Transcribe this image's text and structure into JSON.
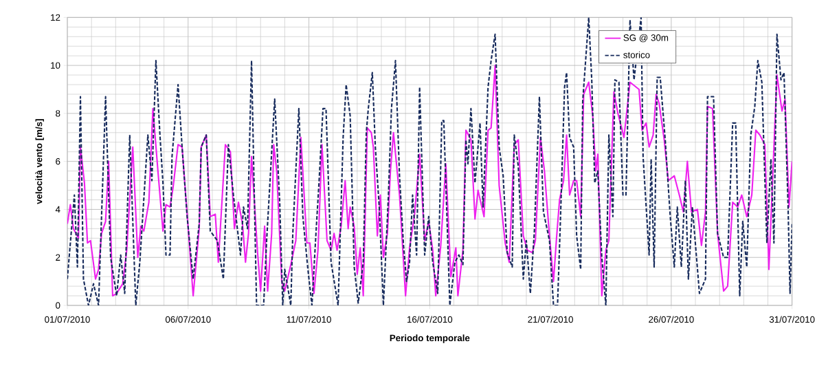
{
  "chart_data": {
    "type": "line",
    "xlabel": "Periodo temporale",
    "ylabel": "velocità vento [m/s]",
    "xlim": [
      "2010-07-01",
      "2010-07-31"
    ],
    "xticks": [
      {
        "value": "2010-07-01",
        "label": "01/07/2010"
      },
      {
        "value": "2010-07-06",
        "label": "06/07/2010"
      },
      {
        "value": "2010-07-11",
        "label": "11/07/2010"
      },
      {
        "value": "2010-07-16",
        "label": "16/07/2010"
      },
      {
        "value": "2010-07-21",
        "label": "21/07/2010"
      },
      {
        "value": "2010-07-26",
        "label": "26/07/2010"
      },
      {
        "value": "2010-07-31",
        "label": "31/07/2010"
      }
    ],
    "ylim": [
      0,
      12
    ],
    "yticks": [
      0,
      2,
      4,
      6,
      8,
      10,
      12
    ],
    "grid": true,
    "legend": "top right",
    "series": [
      {
        "name": "SG @ 30m",
        "color": "#ee22ee",
        "line_style": "solid",
        "x": [
          "2010-07-01T00:00",
          "2010-07-01T03:00",
          "2010-07-01T06:00",
          "2010-07-01T11:00",
          "2010-07-01T13:00",
          "2010-07-01T17:00",
          "2010-07-01T20:00",
          "2010-07-01T23:00",
          "2010-07-02T04:00",
          "2010-07-02T07:00",
          "2010-07-02T10:00",
          "2010-07-02T14:00",
          "2010-07-02T17:00",
          "2010-07-02T21:00",
          "2010-07-03T01:00",
          "2010-07-03T07:00",
          "2010-07-03T11:00",
          "2010-07-03T17:00",
          "2010-07-03T22:00",
          "2010-07-04T01:00",
          "2010-07-04T04:00",
          "2010-07-04T09:00",
          "2010-07-04T13:00",
          "2010-07-04T18:00",
          "2010-07-04T23:00",
          "2010-07-05T02:00",
          "2010-07-05T06:00",
          "2010-07-05T09:00",
          "2010-07-05T14:00",
          "2010-07-05T18:00",
          "2010-07-06T01:00",
          "2010-07-06T05:00",
          "2010-07-06T11:00",
          "2010-07-06T13:00",
          "2010-07-06T18:00",
          "2010-07-06T22:00",
          "2010-07-07T03:00",
          "2010-07-07T06:00",
          "2010-07-07T13:00",
          "2010-07-07T18:00",
          "2010-07-07T22:00",
          "2010-07-08T02:00",
          "2010-07-08T06:00",
          "2010-07-08T09:00",
          "2010-07-08T12:00",
          "2010-07-08T15:00",
          "2010-07-08T21:00",
          "2010-07-09T00:00",
          "2010-07-09T04:00",
          "2010-07-09T07:00",
          "2010-07-09T11:00",
          "2010-07-09T13:00",
          "2010-07-09T16:00",
          "2010-07-09T21:00",
          "2010-07-10T00:00",
          "2010-07-10T06:00",
          "2010-07-10T11:00",
          "2010-07-10T16:00",
          "2010-07-10T22:00",
          "2010-07-11T01:00",
          "2010-07-11T05:00",
          "2010-07-11T09:00",
          "2010-07-11T13:00",
          "2010-07-11T18:00",
          "2010-07-11T22:00",
          "2010-07-12T01:00",
          "2010-07-12T04:00",
          "2010-07-12T08:00",
          "2010-07-12T12:00",
          "2010-07-12T15:00",
          "2010-07-12T17:00",
          "2010-07-12T21:00",
          "2010-07-13T00:00",
          "2010-07-13T03:00",
          "2010-07-13T06:00",
          "2010-07-13T10:00",
          "2010-07-13T14:00",
          "2010-07-13T16:00",
          "2010-07-13T20:00",
          "2010-07-13T23:00",
          "2010-07-14T02:00",
          "2010-07-14T06:00",
          "2010-07-14T09:00",
          "2010-07-14T12:00",
          "2010-07-14T18:00",
          "2010-07-15T00:00",
          "2010-07-15T04:00",
          "2010-07-15T09:00",
          "2010-07-15T14:00",
          "2010-07-15T19:00",
          "2010-07-15T23:00",
          "2010-07-16T03:00",
          "2010-07-16T06:00",
          "2010-07-16T11:00",
          "2010-07-16T16:00",
          "2010-07-16T21:00",
          "2010-07-17T02:00",
          "2010-07-17T04:00",
          "2010-07-17T09:00",
          "2010-07-17T12:00",
          "2010-07-17T17:00",
          "2010-07-17T21:00",
          "2010-07-18T00:00",
          "2010-07-18T06:00",
          "2010-07-18T10:00",
          "2010-07-18T13:00",
          "2010-07-18T17:00",
          "2010-07-18T21:00",
          "2010-07-19T03:00",
          "2010-07-19T07:00",
          "2010-07-19T12:00",
          "2010-07-19T16:00",
          "2010-07-19T21:00",
          "2010-07-20T01:00",
          "2010-07-20T06:00",
          "2010-07-20T09:00",
          "2010-07-20T14:00",
          "2010-07-20T18:00",
          "2010-07-20T23:00",
          "2010-07-21T03:00",
          "2010-07-21T06:00",
          "2010-07-21T09:00",
          "2010-07-21T13:00",
          "2010-07-21T16:00",
          "2010-07-21T19:00",
          "2010-07-21T23:00",
          "2010-07-22T02:00",
          "2010-07-22T06:00",
          "2010-07-22T09:00",
          "2010-07-22T14:00",
          "2010-07-22T18:00",
          "2010-07-22T21:00",
          "2010-07-22T23:00",
          "2010-07-23T03:00",
          "2010-07-23T07:00",
          "2010-07-23T10:00",
          "2010-07-23T15:00",
          "2010-07-23T19:00",
          "2010-07-24T01:00",
          "2010-07-24T07:00",
          "2010-07-24T13:00",
          "2010-07-24T16:00",
          "2010-07-24T19:00",
          "2010-07-24T23:00",
          "2010-07-25T02:00",
          "2010-07-25T06:00",
          "2010-07-25T09:00",
          "2010-07-25T12:00",
          "2010-07-25T17:00",
          "2010-07-25T21:00",
          "2010-07-26T03:00",
          "2010-07-26T08:00",
          "2010-07-26T12:00",
          "2010-07-26T16:00",
          "2010-07-26T20:00",
          "2010-07-27T02:00",
          "2010-07-27T06:00",
          "2010-07-27T10:00",
          "2010-07-27T12:00",
          "2010-07-27T17:00",
          "2010-07-27T22:00",
          "2010-07-28T04:00",
          "2010-07-28T08:00",
          "2010-07-28T13:00",
          "2010-07-28T18:00",
          "2010-07-28T22:00",
          "2010-07-29T03:00",
          "2010-07-29T08:00",
          "2010-07-29T12:00",
          "2010-07-29T16:00",
          "2010-07-29T21:00",
          "2010-07-30T01:00",
          "2010-07-30T06:00",
          "2010-07-30T09:00",
          "2010-07-30T14:00",
          "2010-07-30T17:00",
          "2010-07-30T21:00",
          "2010-07-31T00:00"
        ],
        "values": [
          3.4,
          4.2,
          3.2,
          2.8,
          6.6,
          5.1,
          2.6,
          2.7,
          1.1,
          1.5,
          3.0,
          3.5,
          6.0,
          0.4,
          0.5,
          0.9,
          2.3,
          6.6,
          2.0,
          3.3,
          3.1,
          4.3,
          8.2,
          5.6,
          3.1,
          4.2,
          4.1,
          4.9,
          6.7,
          6.6,
          2.7,
          0.4,
          3.2,
          6.6,
          7.1,
          3.7,
          3.8,
          1.8,
          6.7,
          6.4,
          3.2,
          4.3,
          3.4,
          1.8,
          3.0,
          6.2,
          2.2,
          0.6,
          3.3,
          0.6,
          3.0,
          6.7,
          5.6,
          1.0,
          0.6,
          1.7,
          2.7,
          7.0,
          2.6,
          2.6,
          0.5,
          2.3,
          6.7,
          2.7,
          2.3,
          3.0,
          2.3,
          3.3,
          5.2,
          3.2,
          4.1,
          3.3,
          1.3,
          2.4,
          0.4,
          7.4,
          7.2,
          6.6,
          2.9,
          4.6,
          2.0,
          3.0,
          5.6,
          7.2,
          4.6,
          0.4,
          2.4,
          3.8,
          6.3,
          2.7,
          3.5,
          2.3,
          0.4,
          2.5,
          5.9,
          1.2,
          2.4,
          0.4,
          2.3,
          7.3,
          6.9,
          3.6,
          4.8,
          3.7,
          7.3,
          7.4,
          10.0,
          5.0,
          2.6,
          1.8,
          6.7,
          6.9,
          2.9,
          2.3,
          2.2,
          2.7,
          7.0,
          5.6,
          2.9,
          1.0,
          2.8,
          4.4,
          5.2,
          7.1,
          4.6,
          5.2,
          5.2,
          3.7,
          8.8,
          9.3,
          7.9,
          5.6,
          6.3,
          0.4,
          2.3,
          2.7,
          8.9,
          8.0,
          7.0,
          9.3,
          null,
          9.0,
          7.3,
          7.6,
          6.6,
          7.1,
          8.8,
          8.4,
          6.9,
          5.2,
          5.4,
          4.6,
          3.9,
          6.0,
          3.9,
          4.0,
          2.5,
          3.9,
          8.3,
          8.2,
          3.0,
          0.6,
          0.8,
          4.3,
          4.1,
          4.6,
          3.7,
          4.6,
          7.3,
          7.1,
          6.7,
          1.5,
          6.6,
          9.6,
          8.1,
          8.6,
          4.1,
          6.0
        ]
      },
      {
        "name": "storico",
        "color": "#172b5c",
        "line_style": "dashed",
        "x": [
          "2010-07-01T00:00",
          "2010-07-01T07:00",
          "2010-07-01T10:00",
          "2010-07-01T13:00",
          "2010-07-01T16:00",
          "2010-07-01T21:00",
          "2010-07-02T02:00",
          "2010-07-02T07:00",
          "2010-07-02T14:00",
          "2010-07-02T19:00",
          "2010-07-03T01:00",
          "2010-07-03T05:00",
          "2010-07-03T09:00",
          "2010-07-03T14:00",
          "2010-07-03T20:00",
          "2010-07-04T00:00",
          "2010-07-04T08:00",
          "2010-07-04T12:00",
          "2010-07-04T16:00",
          "2010-07-04T20:00",
          "2010-07-04T23:00",
          "2010-07-05T02:00",
          "2010-07-05T06:00",
          "2010-07-05T08:00",
          "2010-07-05T14:00",
          "2010-07-05T18:00",
          "2010-07-05T23:00",
          "2010-07-06T05:00",
          "2010-07-06T11:00",
          "2010-07-06T13:00",
          "2010-07-06T18:00",
          "2010-07-06T22:00",
          "2010-07-07T05:00",
          "2010-07-07T11:00",
          "2010-07-07T16:00",
          "2010-07-07T21:00",
          "2010-07-08T04:00",
          "2010-07-08T07:00",
          "2010-07-08T11:00",
          "2010-07-08T15:00",
          "2010-07-08T20:00",
          "2010-07-09T03:00",
          "2010-07-09T06:00",
          "2010-07-09T14:00",
          "2010-07-09T19:00",
          "2010-07-09T22:00",
          "2010-07-10T00:00",
          "2010-07-10T06:00",
          "2010-07-10T08:00",
          "2010-07-10T14:00",
          "2010-07-10T18:00",
          "2010-07-10T23:00",
          "2010-07-11T03:00",
          "2010-07-11T07:00",
          "2010-07-11T10:00",
          "2010-07-11T14:00",
          "2010-07-11T17:00",
          "2010-07-11T22:00",
          "2010-07-12T05:00",
          "2010-07-12T10:00",
          "2010-07-12T13:00",
          "2010-07-12T17:00",
          "2010-07-12T21:00",
          "2010-07-13T01:00",
          "2010-07-13T06:00",
          "2010-07-13T09:00",
          "2010-07-13T11:00",
          "2010-07-13T15:00",
          "2010-07-13T18:00",
          "2010-07-13T22:00",
          "2010-07-14T02:00",
          "2010-07-14T07:00",
          "2010-07-14T10:00",
          "2010-07-14T14:00",
          "2010-07-14T18:00",
          "2010-07-14T22:00",
          "2010-07-15T01:00",
          "2010-07-15T04:00",
          "2010-07-15T07:00",
          "2010-07-15T11:00",
          "2010-07-15T14:00",
          "2010-07-15T19:00",
          "2010-07-15T23:00",
          "2010-07-16T03:00",
          "2010-07-16T08:00",
          "2010-07-16T12:00",
          "2010-07-16T14:00",
          "2010-07-16T20:00",
          "2010-07-17T01:00",
          "2010-07-17T05:00",
          "2010-07-17T09:00",
          "2010-07-17T12:00",
          "2010-07-17T14:00",
          "2010-07-17T17:00",
          "2010-07-17T21:00",
          "2010-07-18T02:00",
          "2010-07-18T05:00",
          "2010-07-18T10:00",
          "2010-07-18T13:00",
          "2010-07-18T17:00",
          "2010-07-18T21:00",
          "2010-07-19T01:00",
          "2010-07-19T05:00",
          "2010-07-19T10:00",
          "2010-07-19T12:00",
          "2010-07-19T16:00",
          "2010-07-19T21:00",
          "2010-07-20T00:00",
          "2010-07-20T04:00",
          "2010-07-20T08:00",
          "2010-07-20T13:00",
          "2010-07-20T17:00",
          "2010-07-20T23:00",
          "2010-07-21T03:00",
          "2010-07-21T07:00",
          "2010-07-21T10:00",
          "2010-07-21T14:00",
          "2010-07-21T16:00",
          "2010-07-21T19:00",
          "2010-07-21T23:00",
          "2010-07-22T02:00",
          "2010-07-22T06:00",
          "2010-07-22T08:00",
          "2010-07-22T14:00",
          "2010-07-22T17:00",
          "2010-07-22T20:00",
          "2010-07-22T23:00",
          "2010-07-23T03:00",
          "2010-07-23T07:00",
          "2010-07-23T10:00",
          "2010-07-23T14:00",
          "2010-07-23T16:00",
          "2010-07-23T20:00",
          "2010-07-24T00:00",
          "2010-07-24T03:00",
          "2010-07-24T07:00",
          "2010-07-24T11:00",
          "2010-07-24T18:00",
          "2010-07-24T20:00",
          "2010-07-25T02:00",
          "2010-07-25T04:00",
          "2010-07-25T07:00",
          "2010-07-25T10:00",
          "2010-07-25T13:00",
          "2010-07-25T18:00",
          "2010-07-25T23:00",
          "2010-07-26T03:00",
          "2010-07-26T06:00",
          "2010-07-26T10:00",
          "2010-07-26T14:00",
          "2010-07-26T17:00",
          "2010-07-26T21:00",
          "2010-07-27T04:00",
          "2010-07-27T10:00",
          "2010-07-27T12:00",
          "2010-07-27T18:00",
          "2010-07-27T22:00",
          "2010-07-28T04:00",
          "2010-07-28T08:00",
          "2010-07-28T13:00",
          "2010-07-28T16:00",
          "2010-07-28T20:00",
          "2010-07-28T23:00",
          "2010-07-29T03:00",
          "2010-07-29T07:00",
          "2010-07-29T11:00",
          "2010-07-29T14:00",
          "2010-07-29T18:00",
          "2010-07-29T23:00",
          "2010-07-30T03:00",
          "2010-07-30T06:00",
          "2010-07-30T09:00",
          "2010-07-30T13:00",
          "2010-07-30T16:00",
          "2010-07-30T20:00",
          "2010-07-30T22:00",
          "2010-07-31T00:00"
        ],
        "values": [
          1.1,
          4.6,
          1.6,
          8.7,
          1.1,
          0,
          0.9,
          0,
          8.7,
          2.0,
          0.4,
          2.1,
          0.5,
          7.1,
          0,
          1.8,
          7.1,
          5.2,
          10.2,
          7.1,
          5.1,
          2.1,
          2.1,
          6.2,
          9.2,
          6.6,
          3.7,
          1.1,
          3.4,
          6.6,
          7.1,
          3.1,
          2.7,
          1.1,
          6.7,
          4.6,
          2.1,
          4.1,
          3.2,
          10.2,
          0,
          0,
          2.7,
          8.6,
          4.3,
          0,
          1.5,
          0,
          3.0,
          8.2,
          3.7,
          1.5,
          0,
          3.0,
          5.1,
          8.2,
          8.2,
          1.8,
          0,
          7.0,
          9.2,
          7.9,
          1.6,
          0.1,
          1.8,
          7.2,
          8.2,
          9.7,
          6.6,
          4.0,
          0,
          4.6,
          8.2,
          10.2,
          5.4,
          2.5,
          1.0,
          1.8,
          4.6,
          2.1,
          9.1,
          2.1,
          3.7,
          1.8,
          0.5,
          7.7,
          7.7,
          0,
          1.8,
          2.1,
          1.7,
          6.9,
          5.9,
          8.2,
          5.1,
          7.6,
          4.1,
          9.1,
          10.2,
          11.3,
          6.6,
          5.4,
          2.2,
          1.6,
          7.1,
          5.8,
          1.1,
          2.7,
          0.5,
          3.1,
          8.7,
          3.9,
          2.7,
          0,
          0,
          3.7,
          9.1,
          9.7,
          7.0,
          6.6,
          2.9,
          1.5,
          8.5,
          12,
          9.4,
          5.1,
          5.6,
          2.0,
          0,
          7.1,
          3.7,
          9.4,
          9.3,
          4.6,
          4.6,
          11.9,
          9.4,
          12,
          6.2,
          2.1,
          6.1,
          1.6,
          9.5,
          9.5,
          6.9,
          3.7,
          1.6,
          4.1,
          1.6,
          5.2,
          1.1,
          4.1,
          0.5,
          1.1,
          8.7,
          8.7,
          3.0,
          2.0,
          2.0,
          7.6,
          7.6,
          0.4,
          3.5,
          1.6,
          7.1,
          8.3,
          10.2,
          9.3,
          2.6,
          6.1,
          2.6,
          11.3,
          9.4,
          9.7,
          4.2,
          0.5,
          3.4
        ]
      }
    ]
  }
}
